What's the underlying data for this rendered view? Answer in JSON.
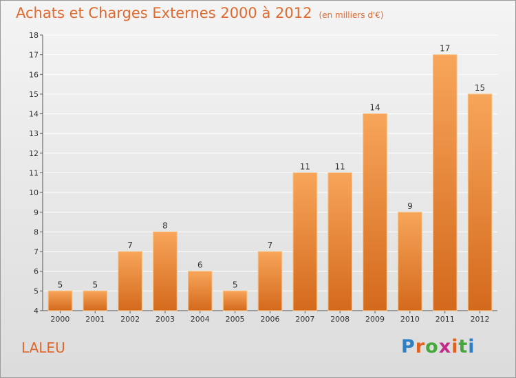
{
  "title": "Achats et Charges Externes 2000 à 2012",
  "subtitle": "(en milliers d'€)",
  "place": "LALEU",
  "logo": {
    "text": "Proxiti",
    "letter_colors": [
      "#2f7fc4",
      "#e0621f",
      "#46a83c",
      "#c52a8a",
      "#e0621f",
      "#46a83c"
    ]
  },
  "colors": {
    "title": "#e06a2e",
    "bar_top": "#f7a55a",
    "bar_bottom": "#d4691c",
    "bar_edge": "#fbc27f",
    "grid": "#ffffff",
    "text": "#333333"
  },
  "chart_data": {
    "type": "bar",
    "title": "Achats et Charges Externes 2000 à 2012",
    "subtitle": "(en milliers d'€)",
    "categories": [
      "2000",
      "2001",
      "2002",
      "2003",
      "2004",
      "2005",
      "2006",
      "2007",
      "2008",
      "2009",
      "2010",
      "2011",
      "2012"
    ],
    "values": [
      5,
      5,
      7,
      8,
      6,
      5,
      7,
      11,
      11,
      14,
      9,
      17,
      15
    ],
    "ylim": [
      4,
      18
    ],
    "yticks": [
      4,
      5,
      6,
      7,
      8,
      9,
      10,
      11,
      12,
      13,
      14,
      15,
      16,
      17,
      18
    ],
    "grid": true,
    "data_labels": true,
    "xlabel": "",
    "ylabel": ""
  }
}
